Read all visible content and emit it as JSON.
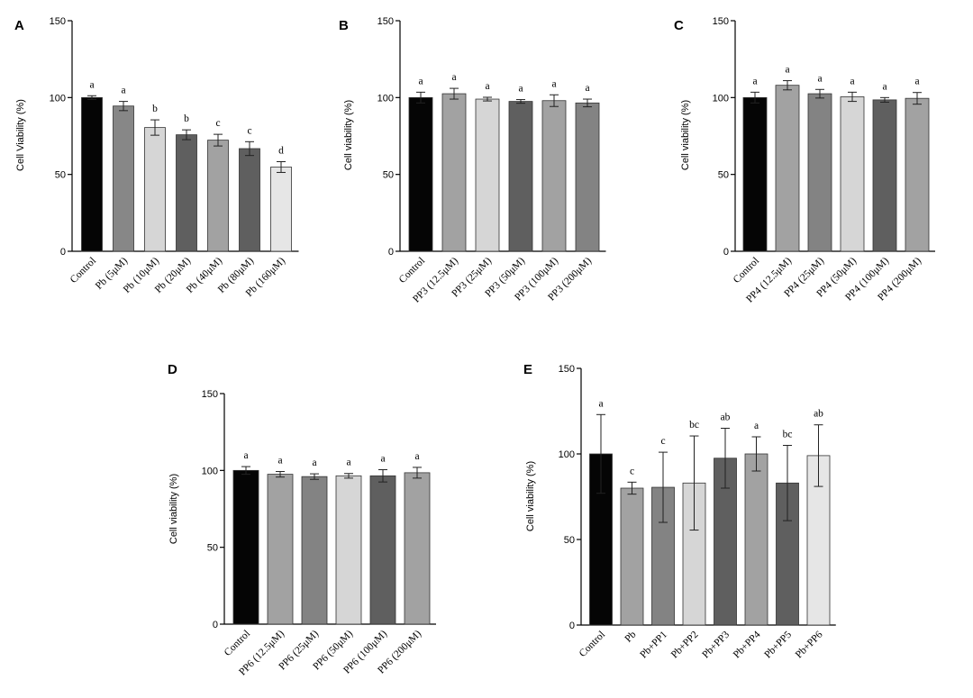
{
  "figure": {
    "width": 1080,
    "height": 775
  },
  "chart_data": [
    {
      "panel": "A",
      "type": "bar",
      "ylabel": "Cell Viability (%)",
      "xlabel": "",
      "ylim": [
        0,
        150
      ],
      "yticks": [
        0,
        50,
        100,
        150
      ],
      "categories": [
        "Control",
        "Pb (5μM)",
        "Pb (10μM)",
        "Pb (20μM)",
        "Pb (40μM)",
        "Pb (80μM)",
        "Pb (160μM)"
      ],
      "values": [
        100,
        94.5,
        80.5,
        75.8,
        72.3,
        66.8,
        54.8
      ],
      "errors": [
        1.2,
        3.0,
        5.0,
        3.2,
        3.8,
        4.5,
        3.5
      ],
      "significance": [
        "a",
        "a",
        "b",
        "b",
        "c",
        "c",
        "d"
      ],
      "colors": [
        "#050505",
        "#878787",
        "#d6d6d6",
        "#5f5f5f",
        "#a2a2a2",
        "#5f5f5f",
        "#e6e6e6"
      ]
    },
    {
      "panel": "B",
      "type": "bar",
      "ylabel": "Cell  viability (%)",
      "xlabel": "",
      "ylim": [
        0,
        150
      ],
      "yticks": [
        0,
        50,
        100,
        150
      ],
      "categories": [
        "Control",
        "PP3 (12.5μM)",
        "PP3 (25μM)",
        "PP3 (50μM)",
        "PP3 (100μM)",
        "PP3 (200μM)"
      ],
      "values": [
        100,
        102.5,
        99,
        97.5,
        98,
        96.5
      ],
      "errors": [
        3.5,
        3.5,
        1.2,
        1.2,
        3.8,
        2.5
      ],
      "significance": [
        "a",
        "a",
        "a",
        "a",
        "a",
        "a"
      ],
      "colors": [
        "#050505",
        "#a2a2a2",
        "#d6d6d6",
        "#5f5f5f",
        "#a2a2a2",
        "#838383"
      ]
    },
    {
      "panel": "C",
      "type": "bar",
      "ylabel": "Cell  viability (%)",
      "xlabel": "",
      "ylim": [
        0,
        150
      ],
      "yticks": [
        0,
        50,
        100,
        150
      ],
      "categories": [
        "Control",
        "PP4 (12.5μM)",
        "PP4 (25μM)",
        "PP4 (50μM)",
        "PP4 (100μM)",
        "PP4 (200μM)"
      ],
      "values": [
        100,
        108,
        102.5,
        100.5,
        98.5,
        99.5
      ],
      "errors": [
        3.5,
        3.0,
        2.8,
        3.0,
        1.5,
        3.8
      ],
      "significance": [
        "a",
        "a",
        "a",
        "a",
        "a",
        "a"
      ],
      "colors": [
        "#050505",
        "#a2a2a2",
        "#838383",
        "#d6d6d6",
        "#5f5f5f",
        "#a2a2a2"
      ]
    },
    {
      "panel": "D",
      "type": "bar",
      "ylabel": "Cell viability (%)",
      "xlabel": "",
      "ylim": [
        0,
        150
      ],
      "yticks": [
        0,
        50,
        100,
        150
      ],
      "categories": [
        "Control",
        "PP6 (12.5μM)",
        "PP6 (25μM)",
        "PP6 (50μM)",
        "PP6 (100μM)",
        "PP6 (200μM)"
      ],
      "values": [
        100,
        97.5,
        96,
        96.5,
        96.5,
        98.5
      ],
      "errors": [
        2.5,
        1.8,
        1.8,
        1.5,
        4.0,
        3.5
      ],
      "significance": [
        "a",
        "a",
        "a",
        "a",
        "a",
        "a"
      ],
      "colors": [
        "#050505",
        "#a2a2a2",
        "#838383",
        "#d6d6d6",
        "#5f5f5f",
        "#a2a2a2"
      ]
    },
    {
      "panel": "E",
      "type": "bar",
      "ylabel": "Cell viability (%)",
      "xlabel": "",
      "ylim": [
        0,
        150
      ],
      "yticks": [
        0,
        50,
        100,
        150
      ],
      "categories": [
        "Control",
        "Pb",
        "Pb+PP1",
        "Pb+PP2",
        "Pb+PP3",
        "Pb+PP4",
        "Pb+PP5",
        "Pb+PP6"
      ],
      "values": [
        100,
        80,
        80.5,
        83,
        97.5,
        100,
        83,
        99
      ],
      "errors": [
        23,
        3.5,
        20.5,
        27.5,
        17.5,
        10,
        22,
        18
      ],
      "significance": [
        "a",
        "c",
        "c",
        "bc",
        "ab",
        "a",
        "bc",
        "ab"
      ],
      "colors": [
        "#050505",
        "#a2a2a2",
        "#838383",
        "#d6d6d6",
        "#5f5f5f",
        "#a2a2a2",
        "#5f5f5f",
        "#e6e6e6"
      ]
    }
  ]
}
